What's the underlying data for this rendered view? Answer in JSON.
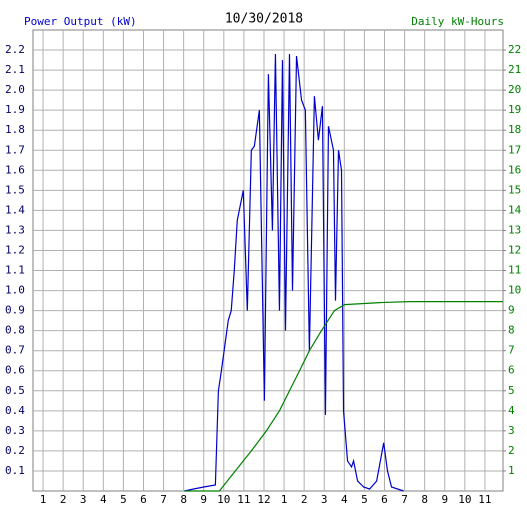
{
  "chart_data": {
    "type": "line",
    "title": "10/30/2018",
    "xlim": [
      0.5,
      23.9
    ],
    "xticks": [
      1,
      2,
      3,
      4,
      5,
      6,
      7,
      8,
      9,
      10,
      11,
      12,
      {
        "value": 13,
        "label": "1"
      },
      {
        "value": 14,
        "label": "2"
      },
      {
        "value": 15,
        "label": "3"
      },
      {
        "value": 16,
        "label": "4"
      },
      {
        "value": 17,
        "label": "5"
      },
      {
        "value": 18,
        "label": "6"
      },
      {
        "value": 19,
        "label": "7"
      },
      {
        "value": 20,
        "label": "8"
      },
      {
        "value": 21,
        "label": "9"
      },
      {
        "value": 22,
        "label": "10"
      },
      {
        "value": 23,
        "label": "11"
      }
    ],
    "ylim": [
      0,
      2.3
    ],
    "yticks": [
      0.1,
      0.2,
      0.3,
      0.4,
      0.5,
      0.6,
      0.7,
      0.8,
      0.9,
      {
        "value": 1,
        "label": "1.0"
      },
      1.1,
      1.2,
      1.3,
      1.4,
      1.5,
      1.6,
      1.7,
      1.8,
      1.9,
      {
        "value": 2,
        "label": "2.0"
      },
      2.1,
      2.2
    ],
    "y2lim": [
      0,
      23
    ],
    "y2ticks": [
      1,
      2,
      3,
      4,
      5,
      6,
      7,
      8,
      9,
      10,
      11,
      12,
      13,
      14,
      15,
      16,
      17,
      18,
      19,
      20,
      21,
      22
    ],
    "grid": true,
    "series": [
      {
        "name": "Power Output (kW)",
        "color": "#0000cc",
        "x": [
          8.03,
          8.5,
          9.0,
          9.58,
          9.73,
          9.88,
          10.22,
          10.37,
          10.52,
          10.67,
          10.97,
          11.17,
          11.37,
          11.52,
          11.77,
          12.02,
          12.22,
          12.42,
          12.57,
          12.77,
          12.92,
          13.07,
          13.27,
          13.42,
          13.62,
          13.87,
          14.06,
          14.26,
          14.51,
          14.71,
          14.91,
          15.06,
          15.21,
          15.46,
          15.56,
          15.71,
          15.86,
          15.96,
          16.16,
          16.36,
          16.46,
          16.66,
          16.96,
          17.26,
          17.61,
          17.96,
          18.15,
          18.35,
          18.95
        ],
        "values": [
          0,
          0.01,
          0.02,
          0.03,
          0.5,
          0.6,
          0.85,
          0.9,
          1.1,
          1.35,
          1.5,
          0.9,
          1.7,
          1.72,
          1.9,
          0.45,
          2.08,
          1.3,
          2.18,
          0.9,
          2.15,
          0.8,
          2.18,
          1.0,
          2.17,
          1.95,
          1.9,
          0.7,
          1.97,
          1.75,
          1.92,
          0.38,
          1.82,
          1.7,
          0.95,
          1.7,
          1.6,
          0.4,
          0.15,
          0.12,
          0.15,
          0.05,
          0.02,
          0.01,
          0.05,
          0.24,
          0.1,
          0.02,
          0
        ]
      },
      {
        "name": "Daily kW-Hours",
        "color": "#008000",
        "axis": "y2",
        "x": [
          8.03,
          9.78,
          10.57,
          11.37,
          12.12,
          12.77,
          13.27,
          13.77,
          14.26,
          14.86,
          15.51,
          16.01,
          17.76,
          19.25,
          23.89
        ],
        "values": [
          0,
          0,
          1,
          2,
          3,
          4,
          5,
          6,
          7,
          8,
          9,
          9.3,
          9.4,
          9.45,
          9.45
        ]
      }
    ]
  }
}
